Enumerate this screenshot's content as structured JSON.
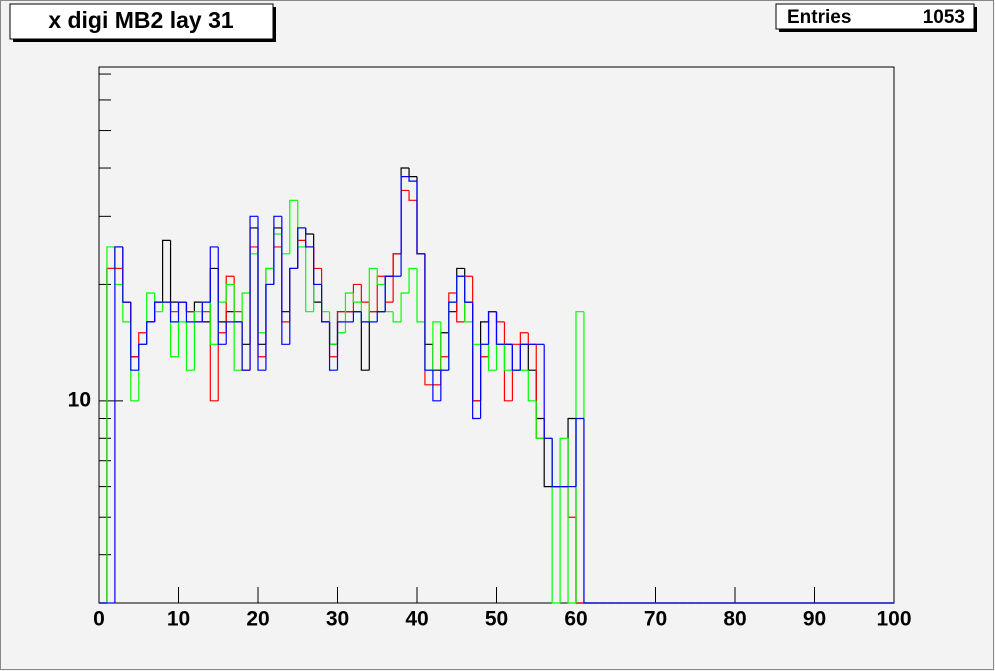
{
  "chart_data": {
    "type": "histogram",
    "title": "x digi MB2 lay 31",
    "stats": {
      "label": "Entries",
      "value": 1053
    },
    "log_y": true,
    "xlim": [
      0,
      100
    ],
    "xticks": [
      0,
      10,
      20,
      30,
      40,
      50,
      60,
      70,
      80,
      90,
      100
    ],
    "ylim": [
      3,
      73
    ],
    "yticks": [
      10
    ],
    "yminor": [
      4,
      5,
      6,
      7,
      8,
      9,
      20,
      30,
      40,
      50,
      60,
      70
    ],
    "bins": [
      0,
      1,
      2,
      3,
      4,
      5,
      6,
      7,
      8,
      9,
      10,
      11,
      12,
      13,
      14,
      15,
      16,
      17,
      18,
      19,
      20,
      21,
      22,
      23,
      24,
      25,
      26,
      27,
      28,
      29,
      30,
      31,
      32,
      33,
      34,
      35,
      36,
      37,
      38,
      39,
      40,
      41,
      42,
      43,
      44,
      45,
      46,
      47,
      48,
      49,
      50,
      51,
      52,
      53,
      54,
      55,
      56,
      57,
      58,
      59,
      60,
      61,
      62,
      63,
      64,
      65,
      66,
      67,
      68,
      69,
      70,
      71,
      72,
      73,
      74,
      75,
      76,
      77,
      78,
      79,
      80,
      81,
      82,
      83,
      84,
      85,
      86,
      87,
      88,
      89,
      90,
      91,
      92,
      93,
      94,
      95,
      96,
      97,
      98,
      99,
      100
    ],
    "series": [
      {
        "color": "#000000",
        "values": [
          0,
          22,
          25,
          18,
          13,
          14,
          16,
          18,
          26,
          18,
          18,
          17,
          18,
          16,
          22,
          16,
          17,
          16,
          14,
          28,
          14,
          20,
          28,
          17,
          22,
          28,
          27,
          18,
          16,
          14,
          17,
          17,
          17,
          12,
          17,
          17,
          21,
          24,
          40,
          38,
          24,
          14,
          12,
          15,
          17,
          22,
          18,
          10,
          16,
          17,
          14,
          14,
          12,
          14,
          12,
          9,
          6,
          6,
          6,
          9,
          0,
          0,
          0,
          0,
          0,
          0,
          0,
          0,
          0,
          0,
          0,
          0,
          0,
          0,
          0,
          0,
          0,
          0,
          0,
          0,
          0,
          0,
          0,
          0,
          0,
          0,
          0,
          0,
          0,
          0,
          0,
          0,
          0,
          0,
          0,
          0,
          0,
          0,
          0,
          0
        ]
      },
      {
        "color": "#ff0000",
        "values": [
          0,
          22,
          22,
          18,
          13,
          15,
          16,
          18,
          18,
          17,
          18,
          17,
          16,
          17,
          10,
          15,
          21,
          17,
          12,
          25,
          13,
          22,
          25,
          16,
          22,
          26,
          25,
          22,
          16,
          13,
          17,
          17,
          20,
          18,
          17,
          21,
          18,
          24,
          35,
          33,
          24,
          11,
          11,
          13,
          19,
          16,
          21,
          10,
          13,
          17,
          16,
          10,
          14,
          15,
          14,
          8,
          8,
          6,
          6,
          5,
          0,
          0,
          0,
          0,
          0,
          0,
          0,
          0,
          0,
          0,
          0,
          0,
          0,
          0,
          0,
          0,
          0,
          0,
          0,
          0,
          0,
          0,
          0,
          0,
          0,
          0,
          0,
          0,
          0,
          0,
          0,
          0,
          0,
          0,
          0,
          0,
          0,
          0,
          0,
          0
        ]
      },
      {
        "color": "#00ff00",
        "values": [
          0,
          25,
          20,
          16,
          10,
          14,
          19,
          17,
          18,
          13,
          16,
          12,
          17,
          18,
          14,
          18,
          20,
          12,
          19,
          24,
          15,
          22,
          27,
          24,
          33,
          25,
          17,
          20,
          17,
          14,
          15,
          19,
          18,
          16,
          22,
          20,
          17,
          16,
          19,
          22,
          16,
          12,
          16,
          12,
          18,
          21,
          16,
          14,
          14,
          12,
          14,
          12,
          12,
          12,
          10,
          8,
          8,
          0,
          8,
          0,
          17,
          0,
          0,
          0,
          0,
          0,
          0,
          0,
          0,
          0,
          0,
          0,
          0,
          0,
          0,
          0,
          0,
          0,
          0,
          0,
          0,
          0,
          0,
          0,
          0,
          0,
          0,
          0,
          0,
          0,
          0,
          0,
          0,
          0,
          0,
          0,
          0,
          0,
          0,
          0
        ]
      },
      {
        "color": "#0000ff",
        "values": [
          0,
          0,
          25,
          18,
          12,
          14,
          16,
          18,
          18,
          16,
          18,
          16,
          16,
          18,
          25,
          14,
          16,
          16,
          12,
          30,
          12,
          20,
          30,
          14,
          22,
          28,
          25,
          20,
          16,
          12,
          16,
          16,
          17,
          16,
          16,
          17,
          21,
          21,
          38,
          37,
          24,
          12,
          10,
          12,
          18,
          21,
          18,
          9,
          14,
          17,
          14,
          14,
          12,
          14,
          14,
          14,
          8,
          6,
          6,
          6,
          9,
          0,
          0,
          0,
          0,
          0,
          0,
          0,
          0,
          0,
          0,
          0,
          0,
          0,
          0,
          0,
          0,
          0,
          0,
          0,
          0,
          0,
          0,
          0,
          0,
          0,
          0,
          0,
          0,
          0,
          0,
          0,
          0,
          0,
          0,
          0,
          0,
          0,
          0,
          0
        ]
      }
    ]
  }
}
